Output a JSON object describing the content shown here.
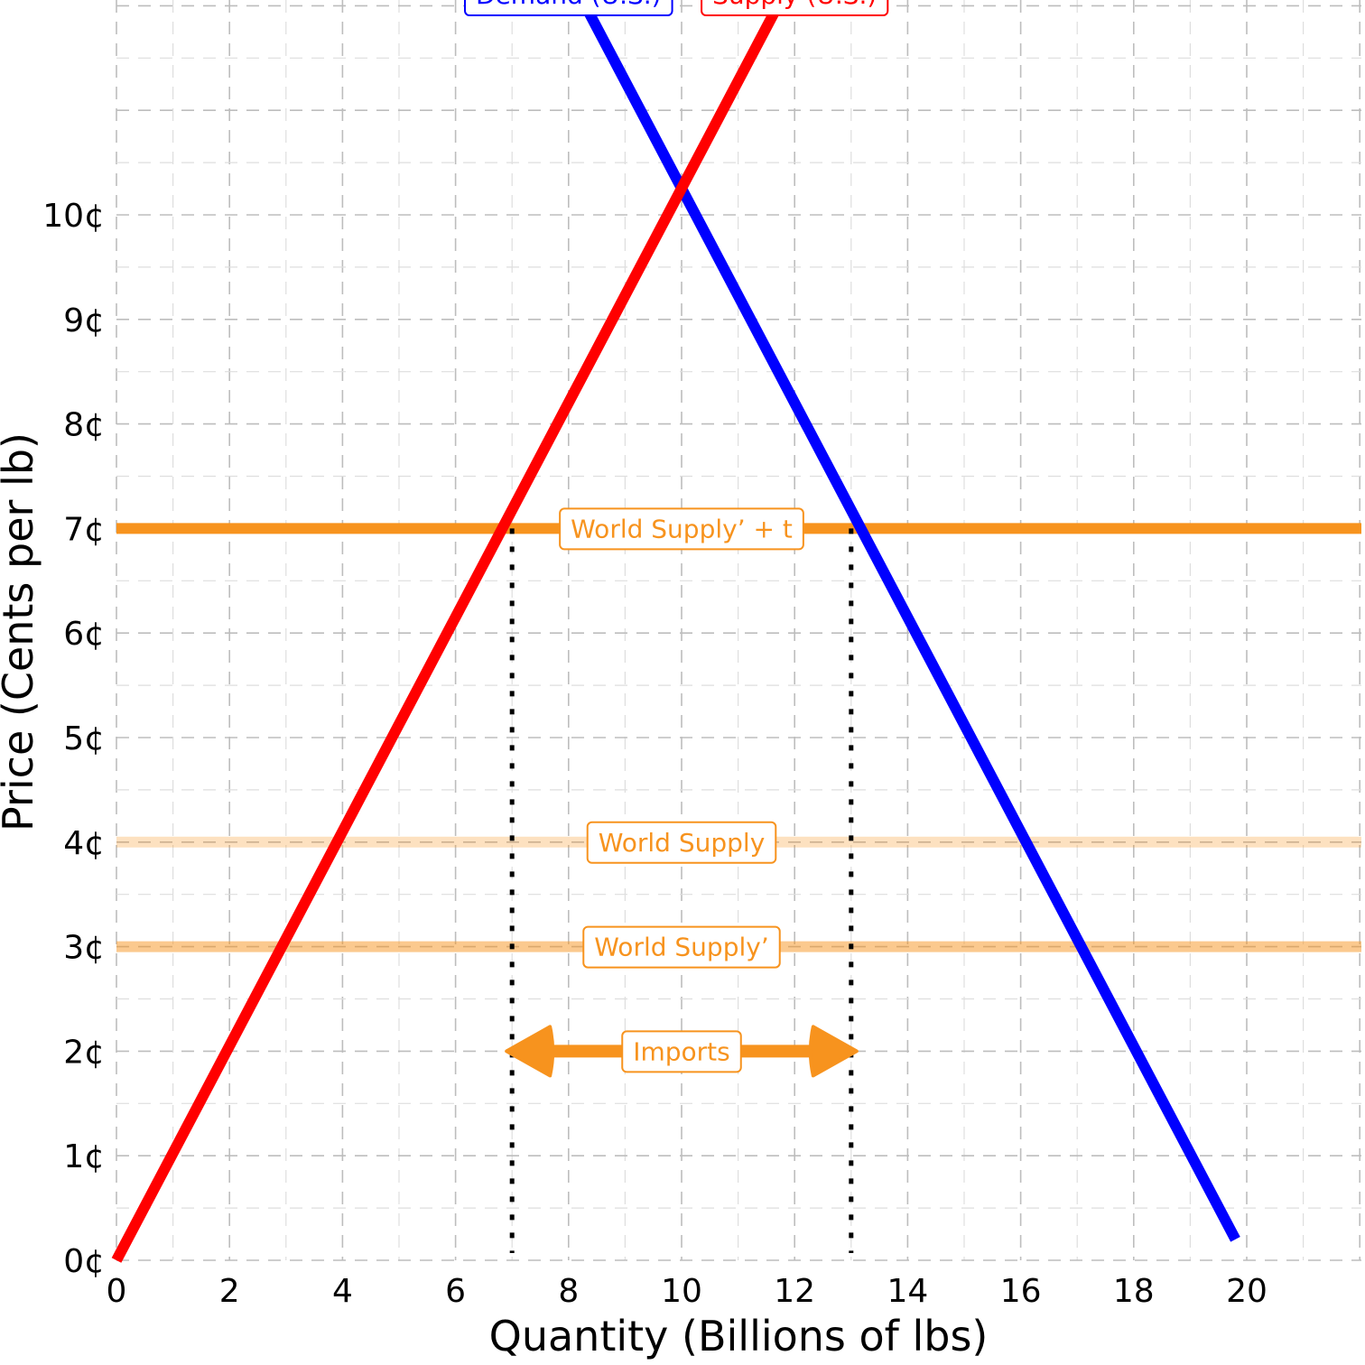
{
  "chart_data": {
    "type": "line",
    "title": "",
    "xlabel": "Quantity (Billions of lbs)",
    "ylabel": "Price (Cents per lb)",
    "xlim": [
      0,
      22
    ],
    "ylim": [
      0,
      12
    ],
    "x_ticks": [
      0,
      2,
      4,
      6,
      8,
      10,
      12,
      14,
      16,
      18,
      20
    ],
    "y_ticks": [
      0,
      1,
      2,
      3,
      4,
      5,
      6,
      7,
      8,
      9,
      10
    ],
    "y_tick_labels": [
      "0¢",
      "1¢",
      "2¢",
      "3¢",
      "4¢",
      "5¢",
      "6¢",
      "7¢",
      "8¢",
      "9¢",
      "10¢"
    ],
    "grid": true,
    "series": [
      {
        "name": "Demand (U.S.)",
        "color": "#0000ff",
        "x": [
          8.2,
          19.8
        ],
        "y": [
          12.1,
          0.2
        ]
      },
      {
        "name": "Supply (U.S.)",
        "color": "#ff0000",
        "x": [
          0,
          11.8
        ],
        "y": [
          0,
          12.1
        ]
      }
    ],
    "hlines": [
      {
        "label": "World Supply’ + t",
        "y": 7,
        "color": "#f7931e",
        "opacity": 1.0,
        "label_x": 10
      },
      {
        "label": "World Supply",
        "y": 4,
        "color": "#f7931e",
        "opacity": 0.28,
        "label_x": 10
      },
      {
        "label": "World Supply’",
        "y": 3,
        "color": "#f7931e",
        "opacity": 0.5,
        "label_x": 10
      }
    ],
    "vlines": [
      {
        "x": 7,
        "y_top": 7
      },
      {
        "x": 13,
        "y_top": 7
      }
    ],
    "arrow": {
      "label": "Imports",
      "x_from": 7,
      "x_to": 13,
      "y": 2,
      "color": "#f7931e"
    }
  }
}
